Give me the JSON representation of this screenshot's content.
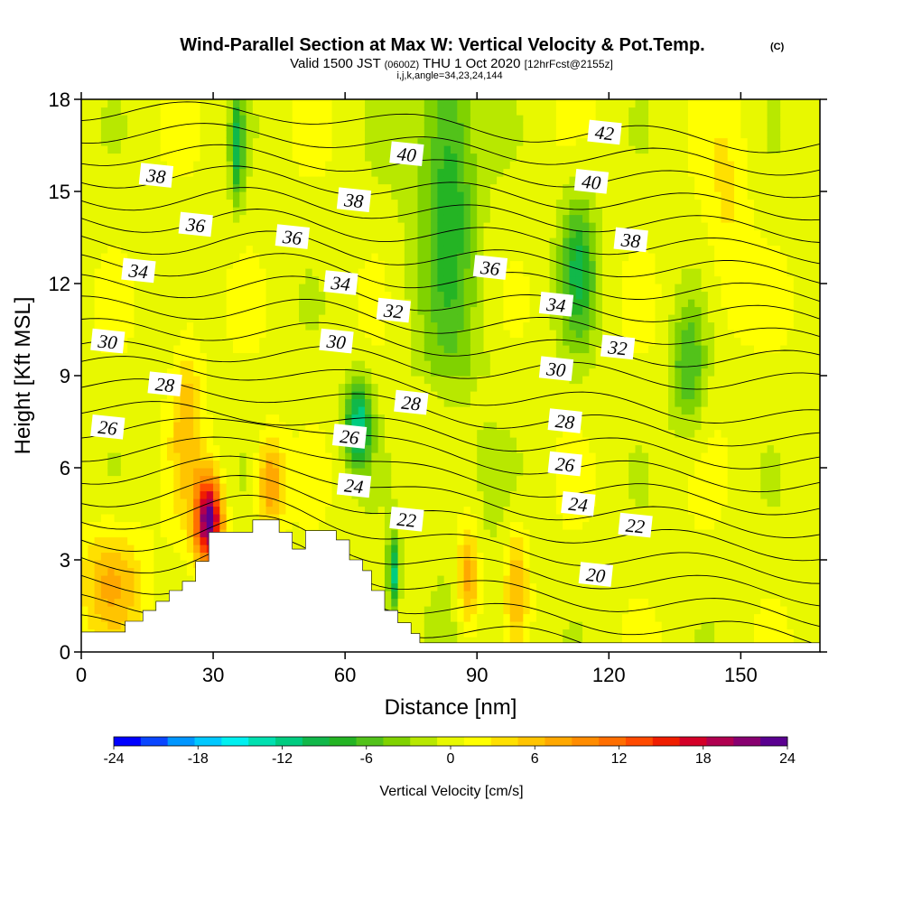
{
  "header": {
    "title": "Wind-Parallel Section at Max W: Vertical Velocity & Pot.Temp.",
    "copyright": "(C)",
    "valid_prefix": "Valid 1500 JST",
    "valid_utc": "(0600Z)",
    "valid_date": "THU 1 Oct 2020",
    "forecast": "[12hrFcst@2155z]",
    "indices": "i,j,k,angle=34,23,24,144"
  },
  "chart_data": {
    "type": "heatmap",
    "title": "Wind-Parallel Section at Max W: Vertical Velocity & Pot.Temp.",
    "xlabel": "Distance [nm]",
    "ylabel": "Height [Kft MSL]",
    "xlim": [
      0,
      168
    ],
    "ylim": [
      0,
      18
    ],
    "x_ticks": [
      0,
      30,
      60,
      90,
      120,
      150
    ],
    "y_ticks": [
      0,
      3,
      6,
      9,
      12,
      15,
      18
    ],
    "colorbar": {
      "label": "Vertical Velocity [cm/s]",
      "ticks": [
        -24,
        -18,
        -12,
        -6,
        0,
        6,
        12,
        18,
        24
      ],
      "levels": [
        -24,
        -22,
        -20,
        -18,
        -16,
        -14,
        -12,
        -10,
        -8,
        -6,
        -4,
        -2,
        0,
        2,
        4,
        6,
        8,
        10,
        12,
        14,
        16,
        18,
        20,
        22,
        24
      ],
      "colors": [
        "#0000ff",
        "#0a46ff",
        "#0096ff",
        "#00c8ff",
        "#00f0f0",
        "#00e0b0",
        "#00cc80",
        "#11b84a",
        "#24b424",
        "#52c21a",
        "#80d200",
        "#b8e800",
        "#e8f800",
        "#ffff00",
        "#ffe000",
        "#ffc400",
        "#ffa800",
        "#ff8c00",
        "#ff6e00",
        "#ff4a00",
        "#f01e00",
        "#d40028",
        "#b00050",
        "#880070",
        "#5a0090"
      ]
    },
    "terrain": [
      [
        0,
        0.65
      ],
      [
        10,
        0.65
      ],
      [
        10,
        1.0
      ],
      [
        14,
        1.0
      ],
      [
        14,
        1.35
      ],
      [
        17,
        1.35
      ],
      [
        17,
        1.65
      ],
      [
        20,
        1.65
      ],
      [
        20,
        2.0
      ],
      [
        23,
        2.0
      ],
      [
        23,
        2.3
      ],
      [
        26,
        2.3
      ],
      [
        26,
        2.95
      ],
      [
        29,
        2.95
      ],
      [
        29,
        3.9
      ],
      [
        39,
        3.9
      ],
      [
        39,
        4.3
      ],
      [
        45,
        4.3
      ],
      [
        45,
        3.9
      ],
      [
        48,
        3.9
      ],
      [
        48,
        3.35
      ],
      [
        51,
        3.35
      ],
      [
        51,
        3.95
      ],
      [
        58,
        3.95
      ],
      [
        58,
        3.65
      ],
      [
        61,
        3.65
      ],
      [
        61,
        3.0
      ],
      [
        64,
        3.0
      ],
      [
        64,
        2.65
      ],
      [
        66,
        2.65
      ],
      [
        66,
        2.0
      ],
      [
        69,
        2.0
      ],
      [
        69,
        1.35
      ],
      [
        72,
        1.35
      ],
      [
        72,
        0.95
      ],
      [
        75,
        0.95
      ],
      [
        75,
        0.6
      ],
      [
        77,
        0.6
      ],
      [
        77,
        0.3
      ],
      [
        168,
        0.3
      ]
    ],
    "theta_contours": [
      {
        "value": 20,
        "label_at": [
          117,
          2.5
        ]
      },
      {
        "value": 22,
        "label_at": [
          74,
          4.3
        ]
      },
      {
        "value": 22,
        "label_at": [
          126,
          4.1
        ]
      },
      {
        "value": 24,
        "label_at": [
          62,
          5.4
        ]
      },
      {
        "value": 24,
        "label_at": [
          113,
          4.8
        ]
      },
      {
        "value": 26,
        "label_at": [
          6,
          7.3
        ]
      },
      {
        "value": 26,
        "label_at": [
          61,
          7.0
        ]
      },
      {
        "value": 26,
        "label_at": [
          110,
          6.1
        ]
      },
      {
        "value": 28,
        "label_at": [
          19,
          8.7
        ]
      },
      {
        "value": 28,
        "label_at": [
          75,
          8.1
        ]
      },
      {
        "value": 28,
        "label_at": [
          110,
          7.5
        ]
      },
      {
        "value": 30,
        "label_at": [
          6,
          10.1
        ]
      },
      {
        "value": 30,
        "label_at": [
          58,
          10.1
        ]
      },
      {
        "value": 30,
        "label_at": [
          108,
          9.2
        ]
      },
      {
        "value": 32,
        "label_at": [
          71,
          11.1
        ]
      },
      {
        "value": 32,
        "label_at": [
          122,
          9.9
        ]
      },
      {
        "value": 34,
        "label_at": [
          13,
          12.4
        ]
      },
      {
        "value": 34,
        "label_at": [
          59,
          12.0
        ]
      },
      {
        "value": 34,
        "label_at": [
          108,
          11.3
        ]
      },
      {
        "value": 36,
        "label_at": [
          26,
          13.9
        ]
      },
      {
        "value": 36,
        "label_at": [
          48,
          13.5
        ]
      },
      {
        "value": 36,
        "label_at": [
          93,
          12.5
        ]
      },
      {
        "value": 38,
        "label_at": [
          17,
          15.5
        ]
      },
      {
        "value": 38,
        "label_at": [
          62,
          14.7
        ]
      },
      {
        "value": 38,
        "label_at": [
          125,
          13.4
        ]
      },
      {
        "value": 40,
        "label_at": [
          74,
          16.2
        ]
      },
      {
        "value": 40,
        "label_at": [
          116,
          15.3
        ]
      },
      {
        "value": 42,
        "label_at": [
          119,
          16.9
        ]
      }
    ],
    "w_features": [
      {
        "x": 29,
        "y": 4.3,
        "w": 24,
        "sx": 3,
        "sy": 1.4
      },
      {
        "x": 43,
        "y": 5.5,
        "w": 9,
        "sx": 3,
        "sy": 1.5
      },
      {
        "x": 24,
        "y": 7.5,
        "w": 6,
        "sx": 3.5,
        "sy": 3
      },
      {
        "x": 7,
        "y": 2.3,
        "w": 7,
        "sx": 7,
        "sy": 1.8
      },
      {
        "x": 88,
        "y": 2.4,
        "w": 9,
        "sx": 2.5,
        "sy": 1.8
      },
      {
        "x": 99,
        "y": 2.3,
        "w": 7,
        "sx": 2.5,
        "sy": 1.8
      },
      {
        "x": 63,
        "y": 7.4,
        "w": -13,
        "sx": 3,
        "sy": 1.4
      },
      {
        "x": 71,
        "y": 2.5,
        "w": -12,
        "sx": 1.3,
        "sy": 1.3
      },
      {
        "x": 35.5,
        "y": 16.5,
        "w": -10,
        "sx": 1.5,
        "sy": 1.8
      },
      {
        "x": 113,
        "y": 12.5,
        "w": -9,
        "sx": 4,
        "sy": 2.5
      },
      {
        "x": 138,
        "y": 9.3,
        "w": -7,
        "sx": 4,
        "sy": 2
      },
      {
        "x": 84,
        "y": 15.2,
        "w": -6,
        "sx": 5,
        "sy": 4
      },
      {
        "x": 147,
        "y": 14.2,
        "w": 3,
        "sx": 5,
        "sy": 4
      }
    ]
  }
}
